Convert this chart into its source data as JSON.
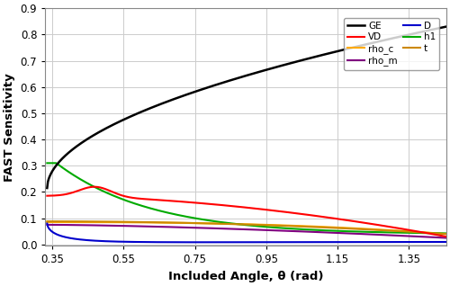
{
  "xlabel": "Included Angle, θ (rad)",
  "ylabel": "FAST Sensitivity",
  "xlim": [
    0.33,
    1.455
  ],
  "ylim": [
    -0.005,
    0.9
  ],
  "xticks": [
    0.35,
    0.55,
    0.75,
    0.95,
    1.15,
    1.35
  ],
  "yticks": [
    0.0,
    0.1,
    0.2,
    0.3,
    0.4,
    0.5,
    0.6,
    0.7,
    0.8,
    0.9
  ],
  "series": {
    "GE": {
      "color": "#000000",
      "lw": 1.8
    },
    "VD": {
      "color": "#ff0000",
      "lw": 1.5
    },
    "rho_c": {
      "color": "#ffaa00",
      "lw": 1.5
    },
    "rho_m": {
      "color": "#800080",
      "lw": 1.5
    },
    "D": {
      "color": "#0000cc",
      "lw": 1.5
    },
    "h1": {
      "color": "#00aa00",
      "lw": 1.5
    },
    "t": {
      "color": "#cc8800",
      "lw": 1.5
    }
  },
  "background_color": "#ffffff",
  "grid_color": "#cccccc"
}
